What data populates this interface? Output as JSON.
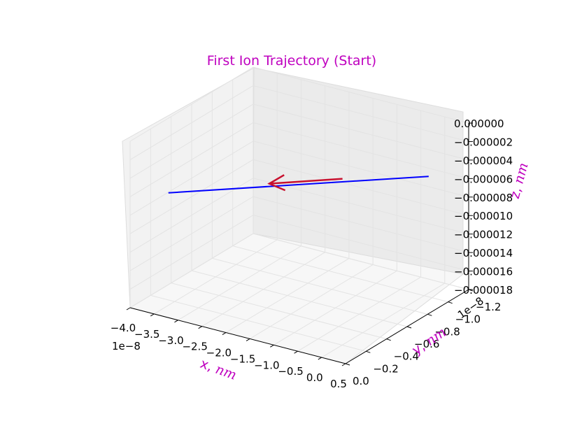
{
  "chart_data": {
    "type": "line3d",
    "title": "First Ion Trajectory (Start)",
    "title_color": "#bf00bf",
    "label_color": "#bf00bf",
    "xlabel": "x, nm",
    "ylabel": "y, nm",
    "zlabel": "z, nm",
    "x_offset_text": "1e−8",
    "y_offset_text": "1e−8",
    "x_ticks": [
      "−4.0",
      "−3.5",
      "−3.0",
      "−2.5",
      "−2.0",
      "−1.5",
      "−1.0",
      "−0.5",
      "0.0",
      "0.5"
    ],
    "y_ticks": [
      "0.0",
      "−0.2",
      "−0.4",
      "−0.6",
      "−0.8",
      "−1.0",
      "−1.2"
    ],
    "z_ticks": [
      "0.000000",
      "−0.000002",
      "−0.000004",
      "−0.000006",
      "−0.000008",
      "−0.000010",
      "−0.000012",
      "−0.000014",
      "−0.000016",
      "−0.000018"
    ],
    "xlim": [
      -4.0,
      0.5
    ],
    "ylim": [
      -1.2,
      0.0
    ],
    "zlim": [
      -1.8e-05,
      0.0
    ],
    "grid": true,
    "series": [
      {
        "color": "#0000ff",
        "points": [
          {
            "x": 0.2,
            "y": -0.95,
            "z": -4.5e-06
          },
          {
            "x": -3.2,
            "y": 0.0,
            "z": -4.5e-06
          }
        ]
      }
    ],
    "arrow": {
      "color": "#c8102e",
      "from": {
        "x": -1.0,
        "y": -0.67,
        "z": -4.5e-06
      },
      "to": {
        "x": -1.95,
        "y": -0.4,
        "z": -4.5e-06
      }
    }
  }
}
